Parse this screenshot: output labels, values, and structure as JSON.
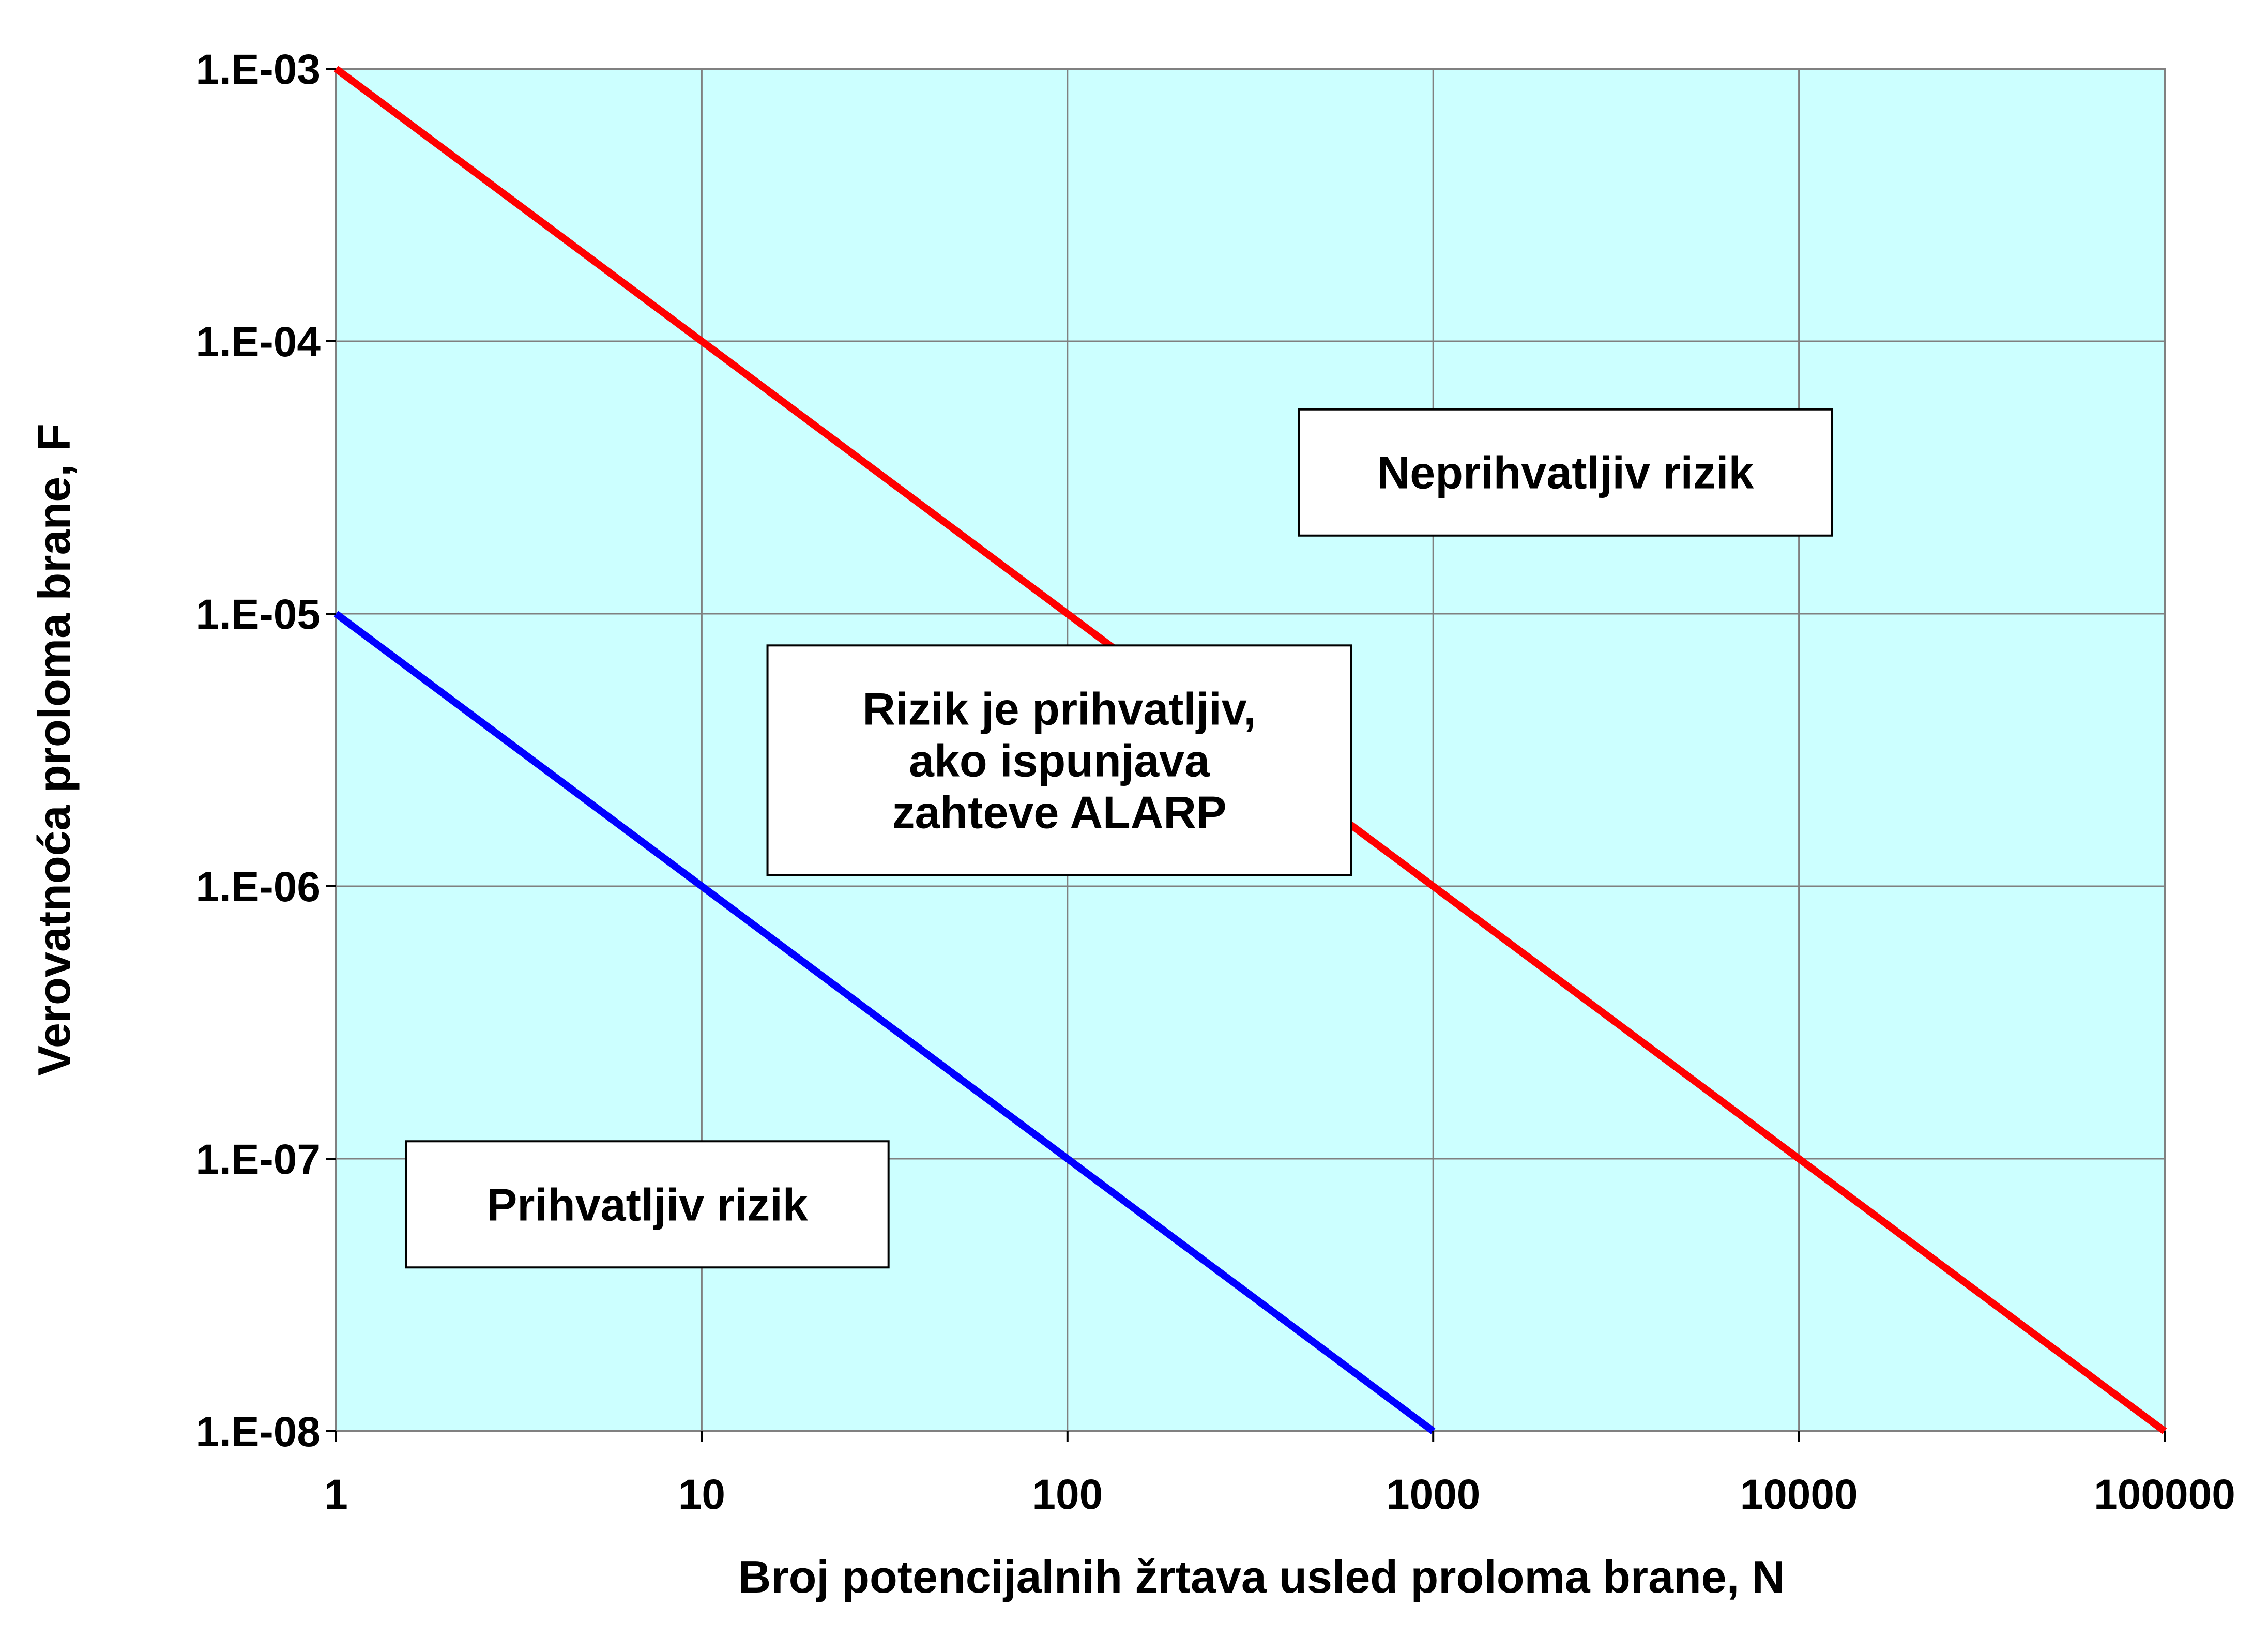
{
  "chart_data": {
    "type": "line",
    "x_scale": "log",
    "y_scale": "log",
    "xlabel": "Broj potencijalnih žrtava usled proloma brane, N",
    "ylabel": "Verovatnoća proloma brane, F",
    "xlim": [
      1,
      100000
    ],
    "ylim": [
      1e-08,
      0.001
    ],
    "x_ticks": [
      1,
      10,
      100,
      1000,
      10000,
      100000
    ],
    "x_tick_labels": [
      "1",
      "10",
      "100",
      "1000",
      "10000",
      "100000"
    ],
    "y_ticks": [
      0.001,
      0.0001,
      1e-05,
      1e-06,
      1e-07,
      1e-08
    ],
    "y_tick_labels": [
      "1.E-03",
      "1.E-04",
      "1.E-05",
      "1.E-06",
      "1.E-07",
      "1.E-08"
    ],
    "grid": true,
    "plot_background": "#ccffff",
    "series": [
      {
        "color": "#ff0000",
        "x": [
          1,
          100000
        ],
        "y": [
          0.001,
          1e-08
        ]
      },
      {
        "color": "#0000ff",
        "x": [
          1,
          1000
        ],
        "y": [
          1e-05,
          1e-08
        ]
      }
    ],
    "annotations": [
      {
        "id": "unacceptable",
        "lines": [
          "Neprihvatljiv rizik"
        ],
        "x": 2300,
        "y": 3.3e-05
      },
      {
        "id": "alarp",
        "lines": [
          "Rizik je prihvatljiv,",
          "ako ispunjava",
          "zahteve ALARP"
        ],
        "x": 95,
        "y": 2.9e-06
      },
      {
        "id": "acceptable",
        "lines": [
          "Prihvatljiv rizik"
        ],
        "x": 7.1,
        "y": 6.8e-08
      }
    ]
  }
}
